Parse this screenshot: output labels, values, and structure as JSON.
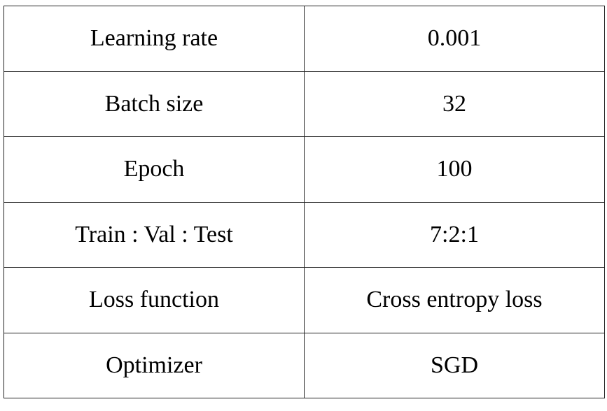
{
  "table": {
    "rows": [
      {
        "param": "Learning rate",
        "value": "0.001"
      },
      {
        "param": "Batch size",
        "value": "32"
      },
      {
        "param": "Epoch",
        "value": "100"
      },
      {
        "param": "Train : Val : Test",
        "value": "7:2:1"
      },
      {
        "param": "Loss function",
        "value": "Cross entropy loss"
      },
      {
        "param": "Optimizer",
        "value": "SGD"
      }
    ]
  }
}
